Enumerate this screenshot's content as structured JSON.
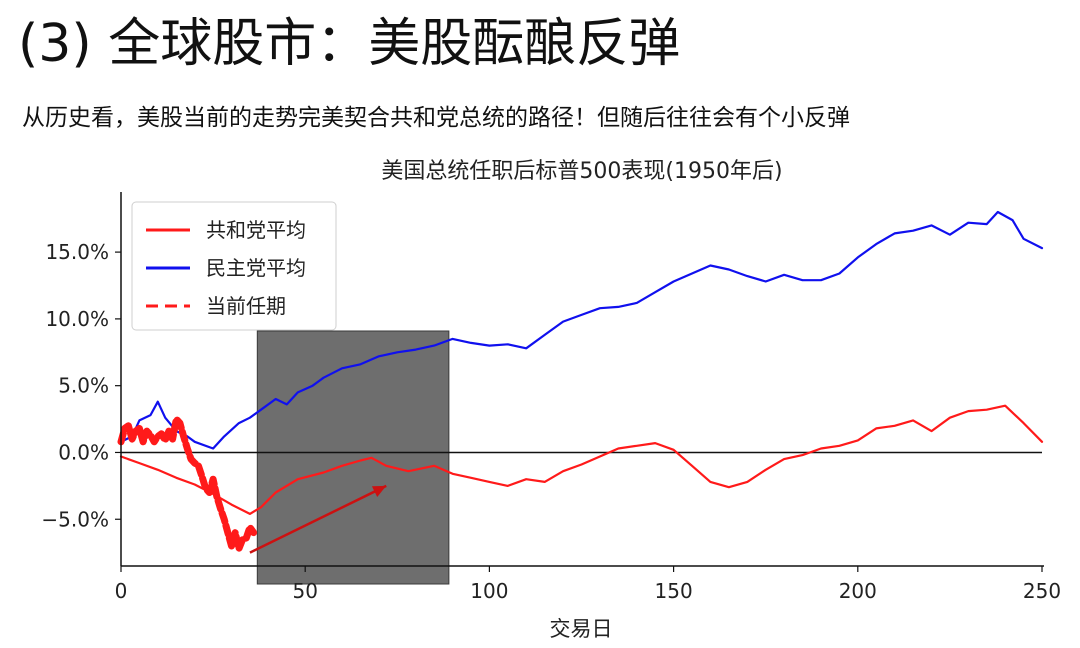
{
  "slide": {
    "title": "(3) 全球股市：美股酝酿反弹",
    "subtitle": "从历史看，美股当前的走势完美契合共和党总统的路径！但随后往往会有个小反弹"
  },
  "chart_data": {
    "type": "line",
    "title": "美国总统任职后标普500表现(1950年后)",
    "xlabel": "交易日",
    "ylabel": "",
    "xlim": [
      0,
      250
    ],
    "ylim": [
      -8.5,
      19.5
    ],
    "xticks": [
      0,
      50,
      100,
      150,
      200,
      250
    ],
    "yticks": [
      -5,
      0,
      5,
      10,
      15
    ],
    "ytick_labels": [
      "−5.0%",
      "0.0%",
      "5.0%",
      "10.0%",
      "15.0%"
    ],
    "legend_position": "upper-left",
    "zero_line": true,
    "highlight_region": {
      "x": [
        37,
        89
      ],
      "color": "#6e6e6e"
    },
    "arrow": {
      "from": [
        35,
        -7.5
      ],
      "to": [
        72,
        -2.5
      ],
      "color": "#cc1111"
    },
    "series": [
      {
        "name": "共和党平均",
        "color": "#ff1a1a",
        "style": "solid",
        "x": [
          0,
          5,
          10,
          15,
          20,
          25,
          30,
          35,
          38,
          42,
          48,
          55,
          60,
          65,
          68,
          72,
          78,
          85,
          90,
          95,
          100,
          105,
          110,
          115,
          120,
          125,
          130,
          135,
          140,
          145,
          150,
          155,
          160,
          165,
          170,
          175,
          180,
          185,
          190,
          195,
          200,
          205,
          210,
          215,
          220,
          225,
          230,
          235,
          240,
          245,
          250
        ],
        "y": [
          -0.3,
          -0.8,
          -1.3,
          -1.9,
          -2.4,
          -3.1,
          -3.9,
          -4.6,
          -4.1,
          -3.0,
          -2.0,
          -1.5,
          -1.0,
          -0.6,
          -0.4,
          -1.0,
          -1.4,
          -1.0,
          -1.6,
          -1.9,
          -2.2,
          -2.5,
          -2.0,
          -2.2,
          -1.4,
          -0.9,
          -0.3,
          0.3,
          0.5,
          0.7,
          0.2,
          -1.0,
          -2.2,
          -2.6,
          -2.2,
          -1.3,
          -0.5,
          -0.2,
          0.3,
          0.5,
          0.9,
          1.8,
          2.0,
          2.4,
          1.6,
          2.6,
          3.1,
          3.2,
          3.5,
          2.2,
          0.8
        ]
      },
      {
        "name": "民主党平均",
        "color": "#1010ee",
        "style": "solid",
        "x": [
          0,
          3,
          5,
          8,
          10,
          12,
          15,
          18,
          20,
          25,
          28,
          32,
          35,
          38,
          42,
          45,
          48,
          52,
          55,
          60,
          65,
          70,
          75,
          80,
          85,
          90,
          95,
          100,
          105,
          110,
          115,
          120,
          125,
          130,
          135,
          140,
          145,
          150,
          155,
          160,
          165,
          170,
          175,
          180,
          185,
          190,
          195,
          200,
          205,
          210,
          215,
          220,
          225,
          230,
          235,
          238,
          242,
          245,
          250
        ],
        "y": [
          0.8,
          1.2,
          2.4,
          2.8,
          3.8,
          2.6,
          1.6,
          1.2,
          0.8,
          0.3,
          1.2,
          2.2,
          2.6,
          3.2,
          4.0,
          3.6,
          4.5,
          5.0,
          5.6,
          6.3,
          6.6,
          7.2,
          7.5,
          7.7,
          8.0,
          8.5,
          8.2,
          8.0,
          8.1,
          7.8,
          8.8,
          9.8,
          10.3,
          10.8,
          10.9,
          11.2,
          12.0,
          12.8,
          13.4,
          14.0,
          13.7,
          13.2,
          12.8,
          13.3,
          12.9,
          12.9,
          13.4,
          14.6,
          15.6,
          16.4,
          16.6,
          17.0,
          16.3,
          17.2,
          17.1,
          18.0,
          17.4,
          16.0,
          15.3
        ]
      },
      {
        "name": "当前任期",
        "color": "#ff1a1a",
        "style": "dashed",
        "x": [
          0,
          1,
          2,
          3,
          4,
          5,
          6,
          7,
          8,
          9,
          10,
          11,
          12,
          13,
          14,
          15,
          16,
          17,
          18,
          19,
          20,
          21,
          22,
          23,
          24,
          25,
          26,
          27,
          28,
          29,
          30,
          31,
          32,
          33,
          34,
          35,
          36
        ],
        "y": [
          0.8,
          1.8,
          2.0,
          1.0,
          1.6,
          1.8,
          0.8,
          1.6,
          1.3,
          0.8,
          1.2,
          1.4,
          0.9,
          1.6,
          1.0,
          2.5,
          2.2,
          1.2,
          0.3,
          -0.5,
          -0.8,
          -1.0,
          -1.8,
          -2.7,
          -3.0,
          -2.0,
          -3.3,
          -4.2,
          -5.0,
          -6.0,
          -7.0,
          -6.0,
          -7.2,
          -6.5,
          -6.4,
          -5.6,
          -6.0
        ]
      }
    ]
  }
}
